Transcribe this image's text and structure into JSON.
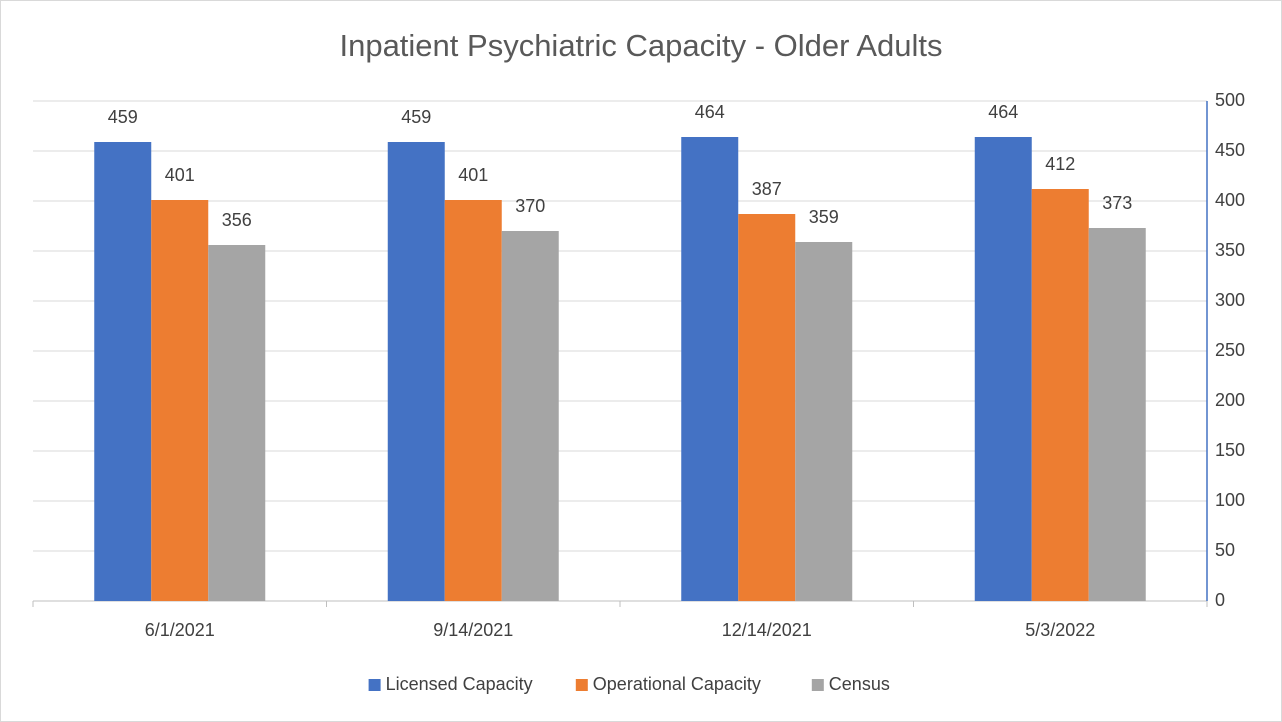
{
  "chart_data": {
    "type": "bar",
    "title": "Inpatient Psychiatric Capacity - Older Adults",
    "categories": [
      "6/1/2021",
      "9/14/2021",
      "12/14/2021",
      "5/3/2022"
    ],
    "series": [
      {
        "name": "Licensed Capacity",
        "color": "#4472c4",
        "values": [
          459,
          459,
          464,
          464
        ]
      },
      {
        "name": "Operational Capacity",
        "color": "#ed7d31",
        "values": [
          401,
          401,
          387,
          412
        ]
      },
      {
        "name": "Census",
        "color": "#a5a5a5",
        "values": [
          356,
          370,
          359,
          373
        ]
      }
    ],
    "ylim": [
      0,
      500
    ],
    "yticks": [
      0,
      50,
      100,
      150,
      200,
      250,
      300,
      350,
      400,
      450,
      500
    ],
    "y_axis_side": "right",
    "grid": true,
    "legend": "bottom"
  }
}
